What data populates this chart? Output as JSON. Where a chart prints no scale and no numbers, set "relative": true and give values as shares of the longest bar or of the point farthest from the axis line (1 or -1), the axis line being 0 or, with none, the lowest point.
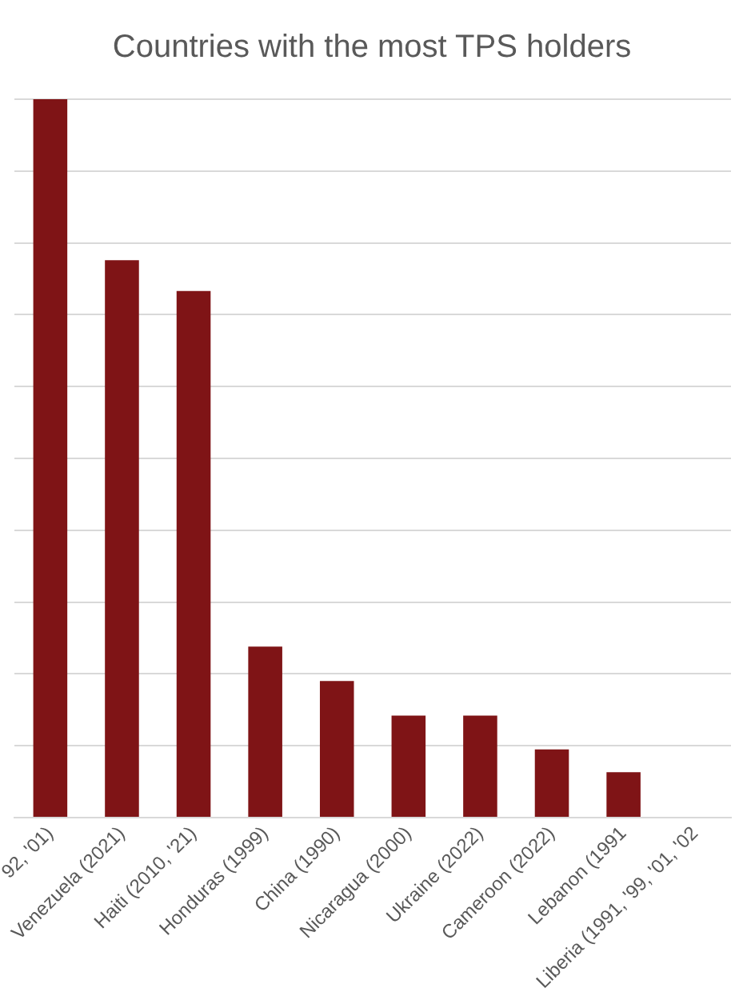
{
  "chart_data": {
    "type": "bar",
    "title": "Countries with the most TPS holders",
    "categories": [
      "92, '01)",
      "Venezuela (2021)",
      "Haiti (2010, '21)",
      "Honduras (1999)",
      "China (1990)",
      "Nicaragua (2000)",
      "Ukraine (2022)",
      "Cameroon (2022)",
      "Lebanon (1991",
      "Liberia (1991, '99, '01, '02"
    ],
    "values": [
      1,
      0.776,
      0.733,
      0.238,
      0.19,
      0.142,
      0.142,
      0.095,
      0.063,
      null
    ],
    "color": "#7f1416",
    "relative": true,
    "grid": "y",
    "legend": false
  }
}
